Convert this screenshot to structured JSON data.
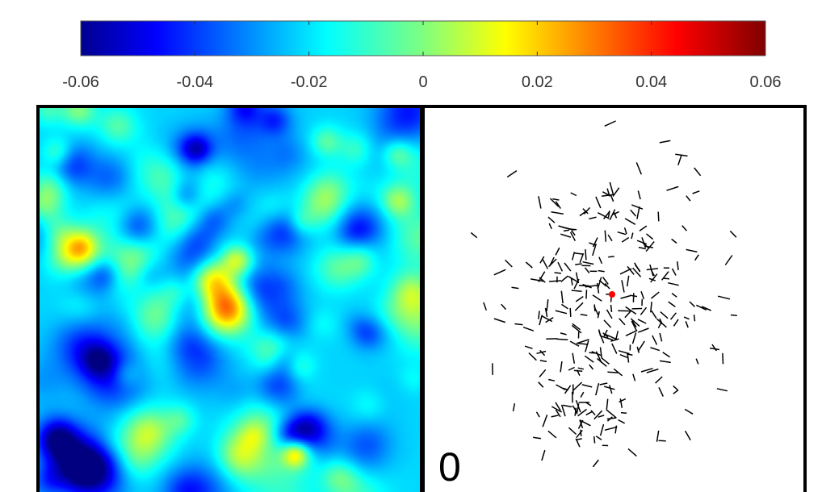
{
  "chart_data": [
    {
      "type": "heatmap",
      "title": "",
      "colormap": "jet",
      "colorbar": {
        "orientation": "horizontal",
        "placement": "top",
        "range": [
          -0.06,
          0.06
        ],
        "tick_values": [
          -0.06,
          -0.04,
          -0.02,
          0,
          0.02,
          0.04,
          0.06
        ],
        "tick_labels": [
          "-0.06",
          "-0.04",
          "-0.02",
          "0",
          "0.02",
          "0.04",
          "0.06"
        ]
      },
      "background_level": -0.02,
      "features": [
        {
          "description": "central high patch",
          "level": 0.04
        },
        {
          "description": "surrounding moderate patches",
          "level": 0.01
        }
      ]
    },
    {
      "type": "scatter",
      "mark": "line-segments",
      "title": "",
      "panel_label": "0",
      "segment_color": "#000000",
      "center_marker_color": "#ff0000"
    }
  ]
}
